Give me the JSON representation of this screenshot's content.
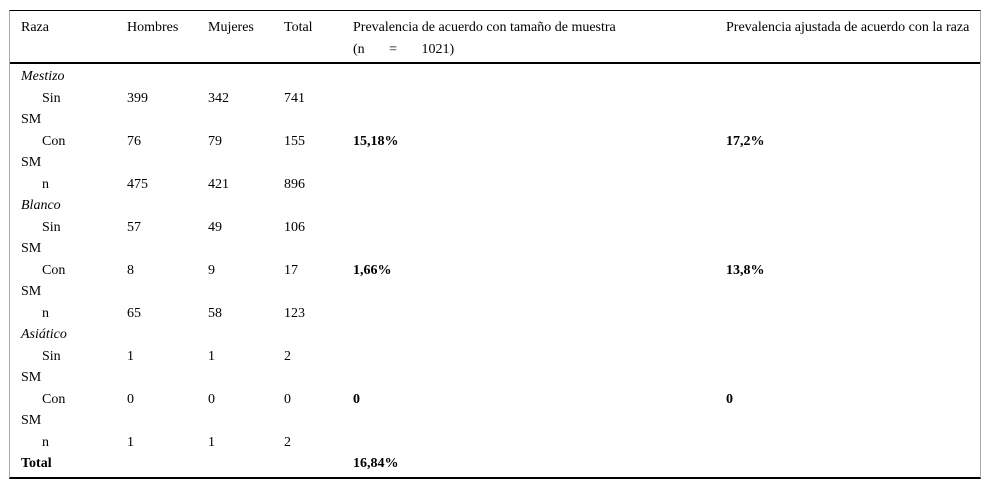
{
  "colors": {
    "background": "#ffffff",
    "text": "#000000",
    "horizontal_rule": "#000000",
    "side_border": "#aaaaaa"
  },
  "table": {
    "headers": {
      "raza": "Raza",
      "hombres": "Hombres",
      "mujeres": "Mujeres",
      "total": "Total",
      "prev_muestra_line1": "Prevalencia de acuerdo con tamaño de muestra",
      "prev_muestra_line2": "(n       =       1021)",
      "prev_raza": "Prevalencia ajustada de acuerdo con la raza"
    },
    "rows": [
      {
        "type": "section",
        "label": "Mestizo",
        "hombres": "",
        "mujeres": "",
        "total": "",
        "prev_muestra": "",
        "prev_raza": ""
      },
      {
        "type": "data",
        "label": "Sin SM",
        "hombres": "399",
        "mujeres": "342",
        "total": "741",
        "prev_muestra": "",
        "prev_raza": ""
      },
      {
        "type": "data",
        "label": "Con SM",
        "hombres": "76",
        "mujeres": "79",
        "total": "155",
        "prev_muestra": "15,18%",
        "prev_raza": "17,2%"
      },
      {
        "type": "subtotal",
        "label": "n",
        "hombres": "475",
        "mujeres": "421",
        "total": "896",
        "prev_muestra": "",
        "prev_raza": ""
      },
      {
        "type": "section",
        "label": "Blanco",
        "hombres": "",
        "mujeres": "",
        "total": "",
        "prev_muestra": "",
        "prev_raza": ""
      },
      {
        "type": "data",
        "label": "Sin SM",
        "hombres": "57",
        "mujeres": "49",
        "total": "106",
        "prev_muestra": "",
        "prev_raza": ""
      },
      {
        "type": "data",
        "label": "Con SM",
        "hombres": "8",
        "mujeres": "9",
        "total": "17",
        "prev_muestra": "1,66%",
        "prev_raza": "13,8%"
      },
      {
        "type": "subtotal",
        "label": "n",
        "hombres": "65",
        "mujeres": "58",
        "total": "123",
        "prev_muestra": "",
        "prev_raza": ""
      },
      {
        "type": "section",
        "label": "Asiático",
        "hombres": "",
        "mujeres": "",
        "total": "",
        "prev_muestra": "",
        "prev_raza": ""
      },
      {
        "type": "data",
        "label": "Sin SM",
        "hombres": "1",
        "mujeres": "1",
        "total": "2",
        "prev_muestra": "",
        "prev_raza": ""
      },
      {
        "type": "data",
        "label": "Con SM",
        "hombres": "0",
        "mujeres": "0",
        "total": "0",
        "prev_muestra": "0",
        "prev_raza": "0"
      },
      {
        "type": "subtotal",
        "label": "n",
        "hombres": "1",
        "mujeres": "1",
        "total": "2",
        "prev_muestra": "",
        "prev_raza": ""
      },
      {
        "type": "total",
        "label": "Total",
        "hombres": "",
        "mujeres": "",
        "total": "",
        "prev_muestra": "16,84%",
        "prev_raza": ""
      }
    ]
  }
}
